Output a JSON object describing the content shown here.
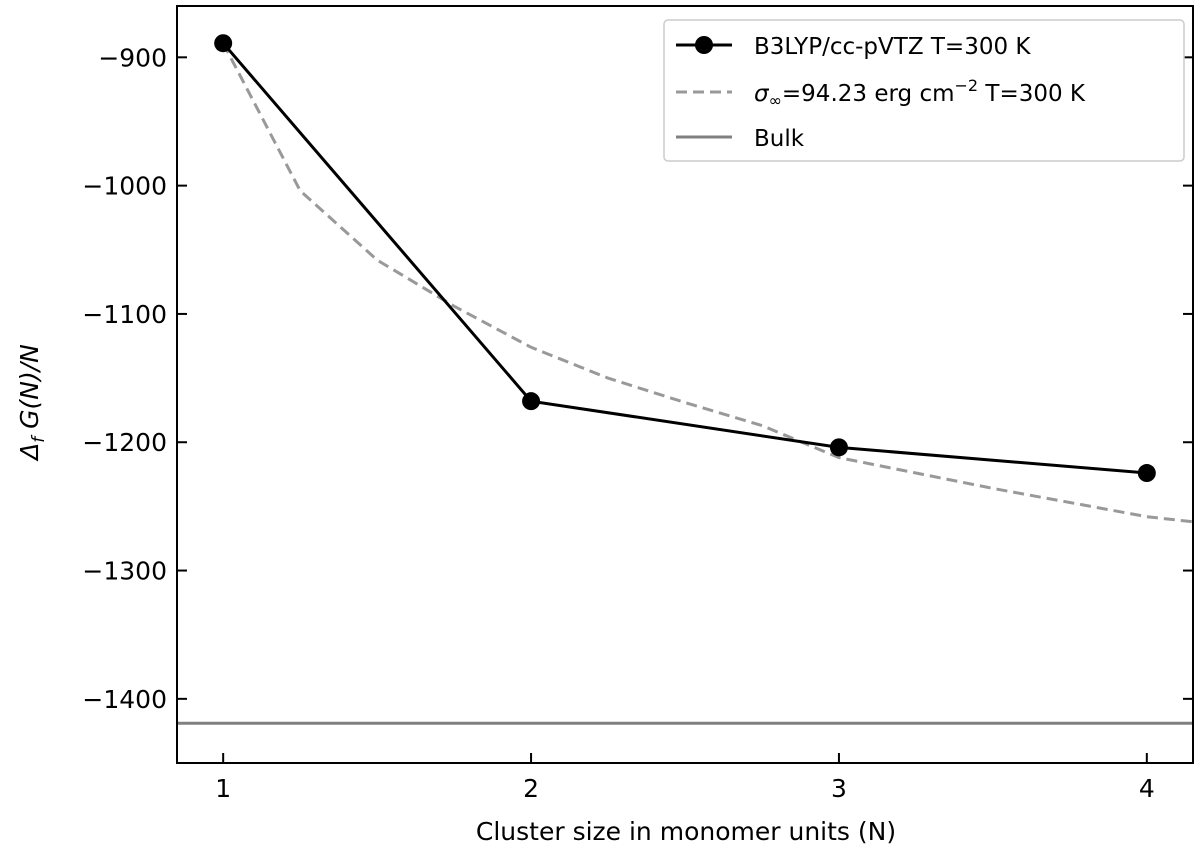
{
  "chart_data": {
    "type": "line",
    "xlabel": "Cluster size in monomer units (N)",
    "ylabel": {
      "delta": "Δ",
      "sub": "f",
      "rest": " G(N)/N"
    },
    "xlim": [
      0.85,
      4.15
    ],
    "ylim": [
      -1450,
      -860
    ],
    "xticks": [
      1,
      2,
      3,
      4
    ],
    "xtick_labels": [
      "1",
      "2",
      "3",
      "4"
    ],
    "yticks": [
      -900,
      -1000,
      -1100,
      -1200,
      -1300,
      -1400
    ],
    "ytick_labels": [
      "−900",
      "−1000",
      "−1100",
      "−1200",
      "−1300",
      "−1400"
    ],
    "grid": false,
    "legend_position": "top-right",
    "series": [
      {
        "name": "B3LYP/cc-pVTZ T=300 K",
        "style": "solid-markers",
        "color": "#000000",
        "x": [
          1,
          2,
          3,
          4
        ],
        "y": [
          -889,
          -1168,
          -1204,
          -1224
        ]
      },
      {
        "name_parts": {
          "sigma": "σ",
          "sub": "∞",
          "mid": "=94.23 erg cm",
          "sup": "−2",
          "end": " T=300 K"
        },
        "style": "dashed",
        "color": "#999999",
        "x": [
          1.0,
          1.25,
          1.5,
          1.75,
          2.0,
          2.25,
          2.5,
          2.75,
          3.0,
          3.25,
          3.5,
          3.75,
          4.0,
          4.15
        ],
        "y": [
          -889,
          -1004,
          -1058,
          -1094,
          -1126,
          -1150,
          -1169,
          -1187,
          -1212,
          -1224,
          -1236,
          -1247,
          -1258,
          -1262
        ]
      },
      {
        "name": "Bulk",
        "style": "solid",
        "color": "#808080",
        "y_const": -1419
      }
    ]
  }
}
